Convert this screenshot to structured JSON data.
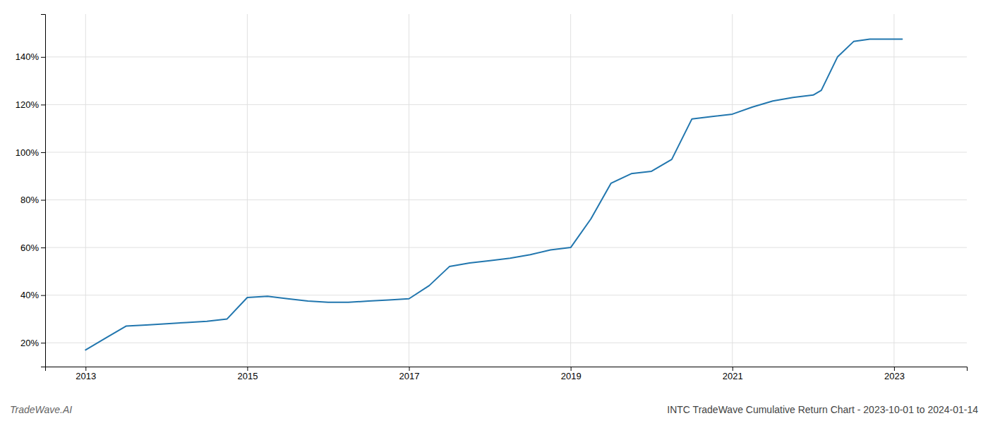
{
  "chart_data": {
    "type": "line",
    "title": "INTC TradeWave Cumulative Return Chart - 2023-10-01 to 2024-01-14",
    "annotations": [
      "TradeWave.AI"
    ],
    "x": [
      2013.0,
      2013.25,
      2013.5,
      2013.75,
      2014.0,
      2014.25,
      2014.5,
      2014.75,
      2015.0,
      2015.25,
      2015.5,
      2015.75,
      2016.0,
      2016.25,
      2016.5,
      2016.75,
      2017.0,
      2017.25,
      2017.5,
      2017.75,
      2018.0,
      2018.25,
      2018.5,
      2018.75,
      2019.0,
      2019.25,
      2019.5,
      2019.75,
      2020.0,
      2020.25,
      2020.5,
      2020.75,
      2021.0,
      2021.25,
      2021.5,
      2021.75,
      2022.0,
      2022.1,
      2022.3,
      2022.5,
      2022.7,
      2022.85,
      2023.0,
      2023.1
    ],
    "values": [
      17.0,
      22.0,
      27.0,
      27.5,
      28.0,
      28.5,
      29.0,
      30.0,
      39.0,
      39.5,
      38.5,
      37.5,
      37.0,
      37.0,
      37.5,
      38.0,
      38.5,
      44.0,
      52.0,
      53.5,
      54.5,
      55.5,
      57.0,
      59.0,
      60.0,
      72.0,
      87.0,
      91.0,
      92.0,
      97.0,
      114.0,
      115.0,
      116.0,
      119.0,
      121.5,
      123.0,
      124.0,
      126.0,
      140.0,
      146.5,
      147.5,
      147.5,
      147.5,
      147.5
    ],
    "color": "#2176ae",
    "xlim": [
      2012.5,
      2023.9
    ],
    "xticks": [
      2013,
      2015,
      2017,
      2019,
      2021,
      2023
    ],
    "ylim": [
      10,
      158
    ],
    "yticks": [
      {
        "value": 20,
        "label": "20%"
      },
      {
        "value": 40,
        "label": "40%"
      },
      {
        "value": 60,
        "label": "60%"
      },
      {
        "value": 80,
        "label": "80%"
      },
      {
        "value": 100,
        "label": "100%"
      },
      {
        "value": 120,
        "label": "120%"
      },
      {
        "value": 140,
        "label": "140%"
      }
    ],
    "grid": true
  }
}
